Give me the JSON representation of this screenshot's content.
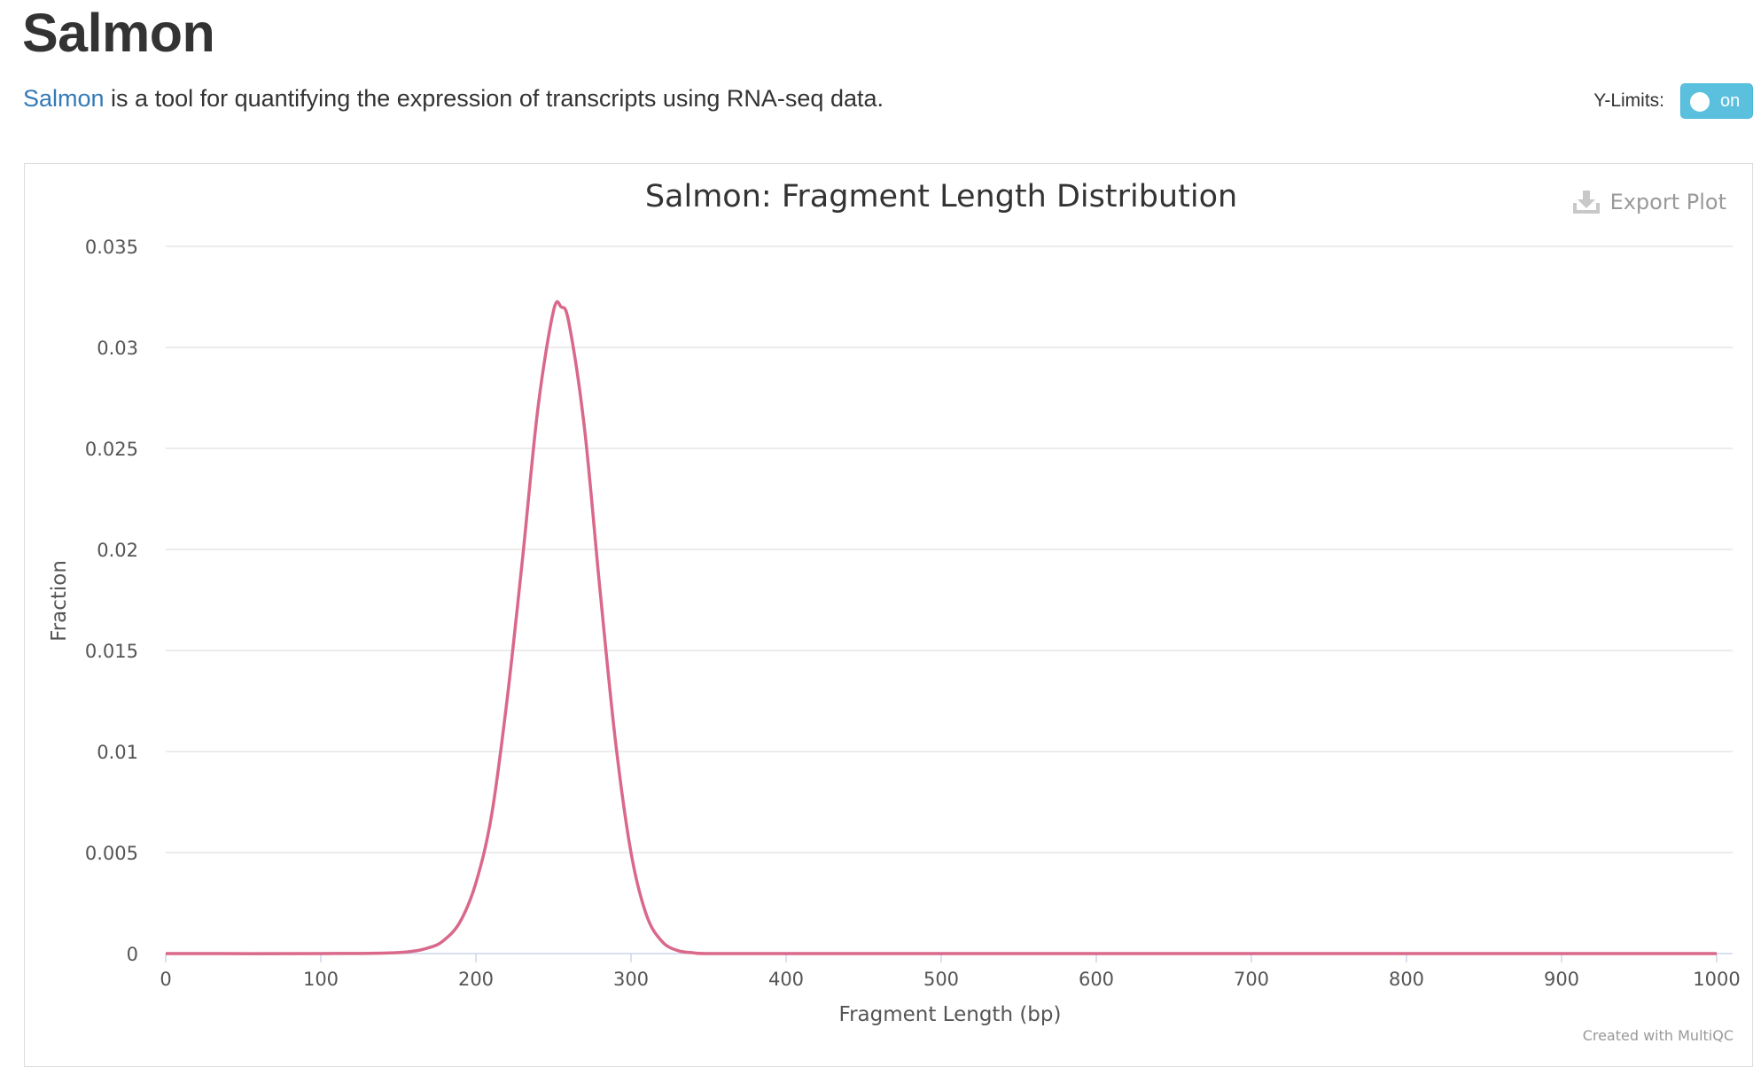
{
  "page": {
    "title": "Salmon",
    "intro_link": "Salmon",
    "intro_text": " is a tool for quantifying the expression of transcripts using RNA-seq data."
  },
  "controls": {
    "ylimits_label": "Y-Limits:",
    "toggle_state": "on",
    "toggle_color": "#5bc0de"
  },
  "plot": {
    "export_label": "Export Plot",
    "export_icon": "download-icon",
    "credit": "Created with MultiQC"
  },
  "chart_data": {
    "type": "line",
    "title": "Salmon: Fragment Length Distribution",
    "xlabel": "Fragment Length (bp)",
    "ylabel": "Fraction",
    "xlim": [
      0,
      1000
    ],
    "ylim": [
      0,
      0.035
    ],
    "x_ticks": [
      "0",
      "100",
      "200",
      "300",
      "400",
      "500",
      "600",
      "700",
      "800",
      "900",
      "1000"
    ],
    "y_ticks": [
      "0",
      "0.005",
      "0.01",
      "0.015",
      "0.02",
      "0.025",
      "0.03",
      "0.035"
    ],
    "grid": true,
    "series": [
      {
        "color": "#d9688a",
        "x": [
          0,
          100,
          150,
          170,
          180,
          190,
          200,
          210,
          220,
          230,
          240,
          250,
          255,
          260,
          270,
          280,
          290,
          300,
          310,
          320,
          330,
          340,
          350,
          400,
          500,
          600,
          700,
          800,
          900,
          1000
        ],
        "y": [
          0,
          0,
          5e-05,
          0.0003,
          0.0007,
          0.0016,
          0.0035,
          0.0068,
          0.0125,
          0.0195,
          0.027,
          0.0318,
          0.032,
          0.0312,
          0.026,
          0.018,
          0.0105,
          0.005,
          0.0019,
          0.0006,
          0.00015,
          4e-05,
          0,
          0,
          0,
          0,
          0,
          0,
          0,
          0
        ]
      }
    ]
  }
}
